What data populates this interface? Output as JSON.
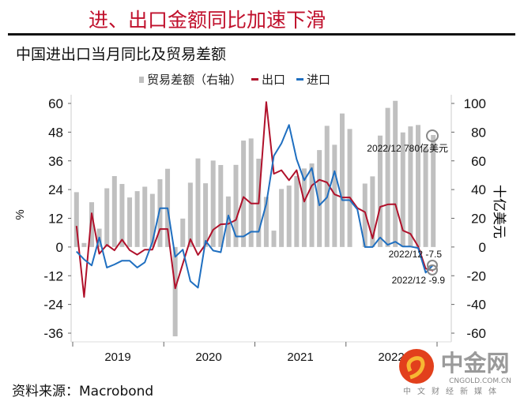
{
  "title": "进、出口金额同比加速下滑",
  "subtitle": "中国进出口当月同比及贸易差额",
  "legend": {
    "balance": "贸易差额（右轴）",
    "exports": "出口",
    "imports": "进口"
  },
  "source": "资料来源：Macrobond",
  "logo": {
    "name": "中金网",
    "domain": "CNGOLD.COM.CN",
    "tagline": "中文财经新媒体"
  },
  "colors": {
    "exports": "#b0112b",
    "imports": "#1f6fc0",
    "balance": "#c0c0c0",
    "title": "#c0102c"
  },
  "chart_data": {
    "type": "bar+line",
    "x_labels": [
      "2019",
      "2020",
      "2021",
      "2022"
    ],
    "x_range": [
      "2019-01",
      "2022-12"
    ],
    "ylabel_left": "%",
    "ylabel_right": "十亿美元",
    "ylim_left": [
      -36,
      60
    ],
    "yticks_left": [
      "60",
      "48",
      "36",
      "24",
      "12",
      "0",
      "-12",
      "-24",
      "-36"
    ],
    "ylim_right": [
      -60,
      100
    ],
    "yticks_right": [
      "100",
      "80",
      "60",
      "40",
      "20",
      "0",
      "-20",
      "-40",
      "-60"
    ],
    "grid": false,
    "legend_position": "top",
    "series": [
      {
        "name": "贸易差额（右轴）",
        "type": "bar",
        "axis": "right",
        "values": [
          38.2,
          2.8,
          31.2,
          12.8,
          40.9,
          49.4,
          43.9,
          34.5,
          38.9,
          42.0,
          37.0,
          47.2,
          54.5,
          -62.2,
          19.8,
          44.8,
          61.7,
          44.4,
          60.2,
          57.1,
          35.2,
          57.2,
          74.1,
          75.6,
          61.5,
          34.9,
          11.4,
          40.4,
          42.8,
          49.5,
          54.7,
          58.2,
          67.5,
          84.4,
          71.2,
          93.0,
          82.2,
          null,
          44.2,
          49.2,
          77.6,
          96.9,
          101.8,
          79.8,
          84.0,
          85.0,
          70.0,
          78.0
        ]
      },
      {
        "name": "出口",
        "type": "line",
        "axis": "left",
        "values": [
          8.8,
          -20.9,
          14.1,
          -2.8,
          0.9,
          -1.4,
          3.1,
          -1.3,
          -3.2,
          -1.1,
          -1.1,
          7.5,
          7.5,
          -17.3,
          -7.0,
          3.3,
          -3.3,
          1.1,
          7.2,
          9.5,
          9.7,
          11.3,
          20.9,
          18.2,
          18.2,
          60.6,
          30.6,
          32.1,
          27.9,
          32.1,
          19.0,
          25.7,
          28.1,
          27.0,
          22.0,
          20.7,
          20.7,
          16.3,
          14.6,
          3.6,
          16.8,
          17.8,
          17.9,
          6.9,
          5.5,
          0.3,
          -9.0,
          -9.9
        ]
      },
      {
        "name": "进口",
        "type": "line",
        "axis": "left",
        "values": [
          -1.9,
          -5.2,
          -7.7,
          4.0,
          -8.6,
          -7.3,
          -5.7,
          -5.7,
          -8.6,
          -6.4,
          2.0,
          16.2,
          16.2,
          -4.1,
          -1.1,
          -14.3,
          -17.0,
          2.6,
          -1.5,
          -2.2,
          13.2,
          4.4,
          4.4,
          6.4,
          6.4,
          18.0,
          38.1,
          43.3,
          51.0,
          36.7,
          27.9,
          33.0,
          17.4,
          20.7,
          31.7,
          19.6,
          19.6,
          15.7,
          0.0,
          0.0,
          4.0,
          0.9,
          2.2,
          0.2,
          0.2,
          -0.4,
          -10.7,
          -7.5
        ]
      }
    ],
    "annotations": [
      {
        "series": "贸易差额（右轴）",
        "label": "2022/12 780亿美元",
        "value": 78.0
      },
      {
        "series": "进口",
        "label": "2022/12 -7.5",
        "value": -7.5
      },
      {
        "series": "出口",
        "label": "2022/12 -9.9",
        "value": -9.9
      }
    ]
  }
}
